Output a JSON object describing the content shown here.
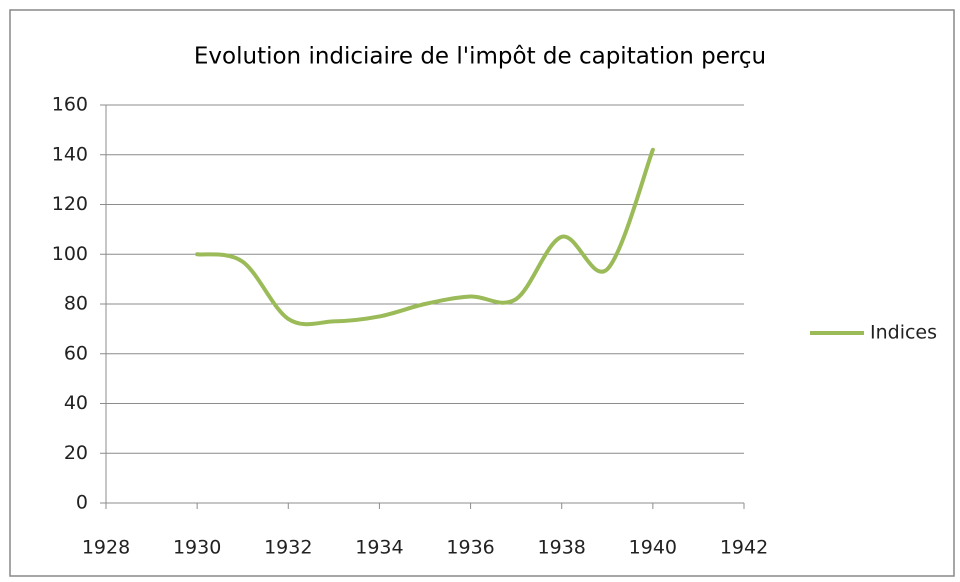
{
  "chart_data": {
    "type": "line",
    "title": "Evolution indiciaire de l'impôt de capitation perçu",
    "x": [
      1930,
      1931,
      1932,
      1933,
      1934,
      1935,
      1936,
      1937,
      1938,
      1939,
      1940
    ],
    "series": [
      {
        "name": "Indices",
        "color": "#9bbb59",
        "values": [
          100,
          97,
          74,
          73,
          75,
          80,
          83,
          82,
          107,
          94,
          142
        ]
      }
    ],
    "xlim": [
      1928,
      1942
    ],
    "xticks": [
      1928,
      1930,
      1932,
      1934,
      1936,
      1938,
      1940,
      1942
    ],
    "ylim": [
      0,
      160
    ],
    "yticks": [
      0,
      20,
      40,
      60,
      80,
      100,
      120,
      140,
      160
    ],
    "grid": true,
    "legend": "right",
    "smooth": true
  }
}
